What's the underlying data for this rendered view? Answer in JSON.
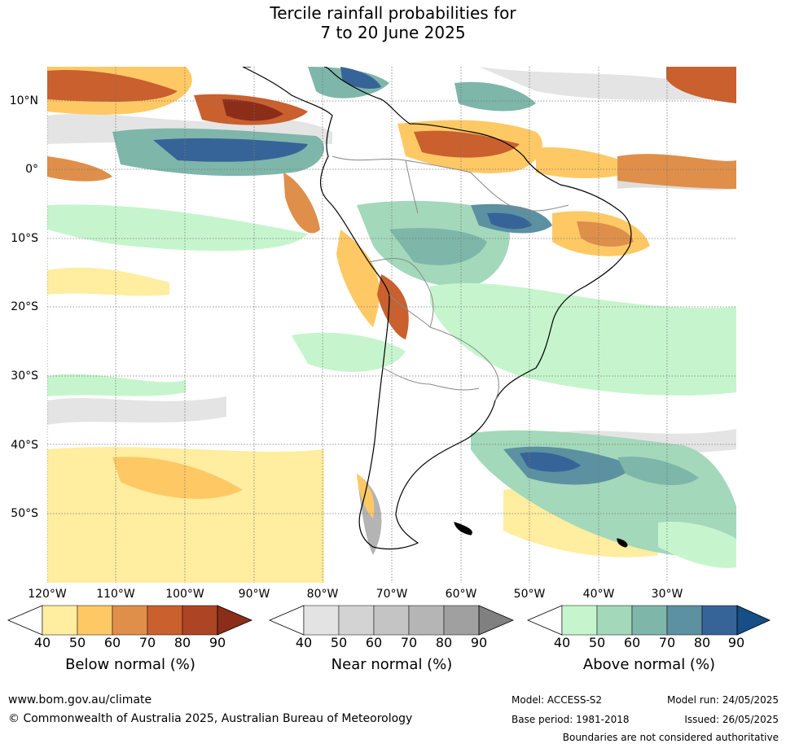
{
  "title_line1": "Tercile rainfall probabilities for",
  "title_line2": "7 to 20 June 2025",
  "lat_labels": [
    "10°N",
    "0°",
    "10°S",
    "20°S",
    "30°S",
    "40°S",
    "50°S"
  ],
  "lon_labels": [
    "120°W",
    "110°W",
    "100°W",
    "90°W",
    "80°W",
    "70°W",
    "60°W",
    "50°W",
    "40°W",
    "30°W"
  ],
  "legends": [
    {
      "title": "Below normal (%)",
      "ticks": [
        "40",
        "50",
        "60",
        "70",
        "80",
        "90"
      ],
      "colors": [
        "#ffffff",
        "#ffeda0",
        "#fec965",
        "#df8f4a",
        "#c9602e",
        "#ad4423",
        "#8c2d1a"
      ]
    },
    {
      "title": "Near normal (%)",
      "ticks": [
        "40",
        "50",
        "60",
        "70",
        "80",
        "90"
      ],
      "colors": [
        "#ffffff",
        "#e3e3e3",
        "#d3d3d3",
        "#c4c4c4",
        "#b5b5b5",
        "#a0a0a0",
        "#808080"
      ]
    },
    {
      "title": "Above normal (%)",
      "ticks": [
        "40",
        "50",
        "60",
        "70",
        "80",
        "90"
      ],
      "colors": [
        "#ffffff",
        "#c6f5cd",
        "#a3d8bb",
        "#7eb6aa",
        "#5b91a0",
        "#376498",
        "#164e87"
      ]
    }
  ],
  "footer": {
    "url": "www.bom.gov.au/climate",
    "copyright": "© Commonwealth of Australia 2025, Australian Bureau of Meteorology",
    "model": "Model: ACCESS-S2",
    "base_period": "Base period: 1981-2018",
    "model_run": "Model run: 24/05/2025",
    "issued": "Issued: 26/05/2025",
    "boundaries": "Boundaries are not considered authoritative"
  }
}
